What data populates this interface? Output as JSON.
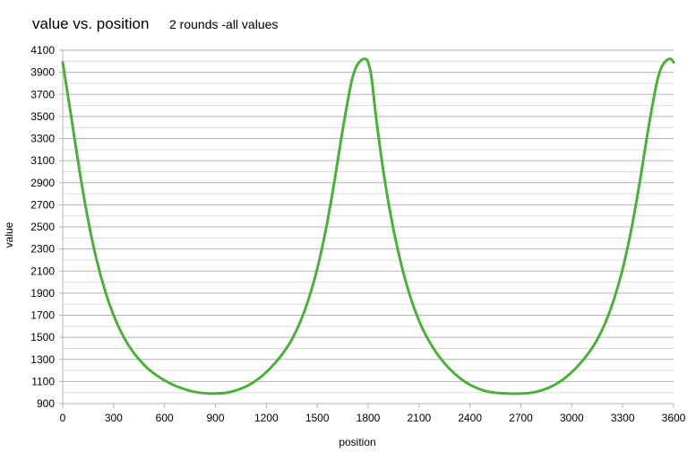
{
  "chart_data": {
    "type": "line",
    "title": "value vs. position",
    "subtitle": "2 rounds -all values",
    "xlabel": "position",
    "ylabel": "value",
    "xlim": [
      0,
      3600
    ],
    "ylim": [
      900,
      4100
    ],
    "xticks": [
      0,
      300,
      600,
      900,
      1200,
      1500,
      1800,
      2100,
      2400,
      2700,
      3000,
      3300,
      3600
    ],
    "yticks": [
      900,
      1100,
      1300,
      1500,
      1700,
      1900,
      2100,
      2300,
      2500,
      2700,
      2900,
      3100,
      3300,
      3500,
      3700,
      3900,
      4100
    ],
    "yticks_minor": [
      1000,
      1200,
      1400,
      1600,
      1800,
      2000,
      2200,
      2400,
      2600,
      2800,
      3000,
      3200,
      3400,
      3600,
      3800,
      4000
    ],
    "grid": true,
    "legend": "none",
    "colors": {
      "line": "#4caf3c",
      "grid": "#b3b3b3",
      "axis": "#b3b3b3"
    },
    "series": [
      {
        "x": [
          0,
          50,
          100,
          150,
          200,
          250,
          300,
          350,
          400,
          450,
          500,
          550,
          600,
          650,
          700,
          750,
          800,
          850,
          890,
          950,
          1000,
          1050,
          1100,
          1150,
          1200,
          1250,
          1300,
          1350,
          1400,
          1450,
          1500,
          1550,
          1600,
          1650,
          1700,
          1730,
          1760,
          1785,
          1800,
          1820,
          1850,
          1900,
          1950,
          2000,
          2050,
          2100,
          2150,
          2200,
          2250,
          2300,
          2350,
          2400,
          2450,
          2500,
          2550,
          2600,
          2650,
          2690,
          2750,
          2800,
          2850,
          2900,
          2950,
          3000,
          3050,
          3100,
          3150,
          3200,
          3250,
          3300,
          3350,
          3400,
          3450,
          3500,
          3530,
          3560,
          3585,
          3600
        ],
        "y": [
          3990,
          3500,
          3000,
          2560,
          2200,
          1920,
          1700,
          1530,
          1400,
          1300,
          1220,
          1160,
          1110,
          1070,
          1040,
          1015,
          1000,
          992,
          990,
          995,
          1010,
          1035,
          1070,
          1120,
          1185,
          1265,
          1360,
          1480,
          1640,
          1850,
          2120,
          2470,
          2900,
          3380,
          3800,
          3950,
          4010,
          4020,
          3990,
          3850,
          3450,
          2900,
          2470,
          2130,
          1860,
          1650,
          1490,
          1365,
          1265,
          1185,
          1120,
          1070,
          1035,
          1010,
          998,
          992,
          990,
          990,
          995,
          1010,
          1035,
          1070,
          1120,
          1185,
          1265,
          1360,
          1480,
          1640,
          1850,
          2120,
          2470,
          2900,
          3380,
          3800,
          3950,
          4010,
          4020,
          3990
        ]
      }
    ]
  }
}
